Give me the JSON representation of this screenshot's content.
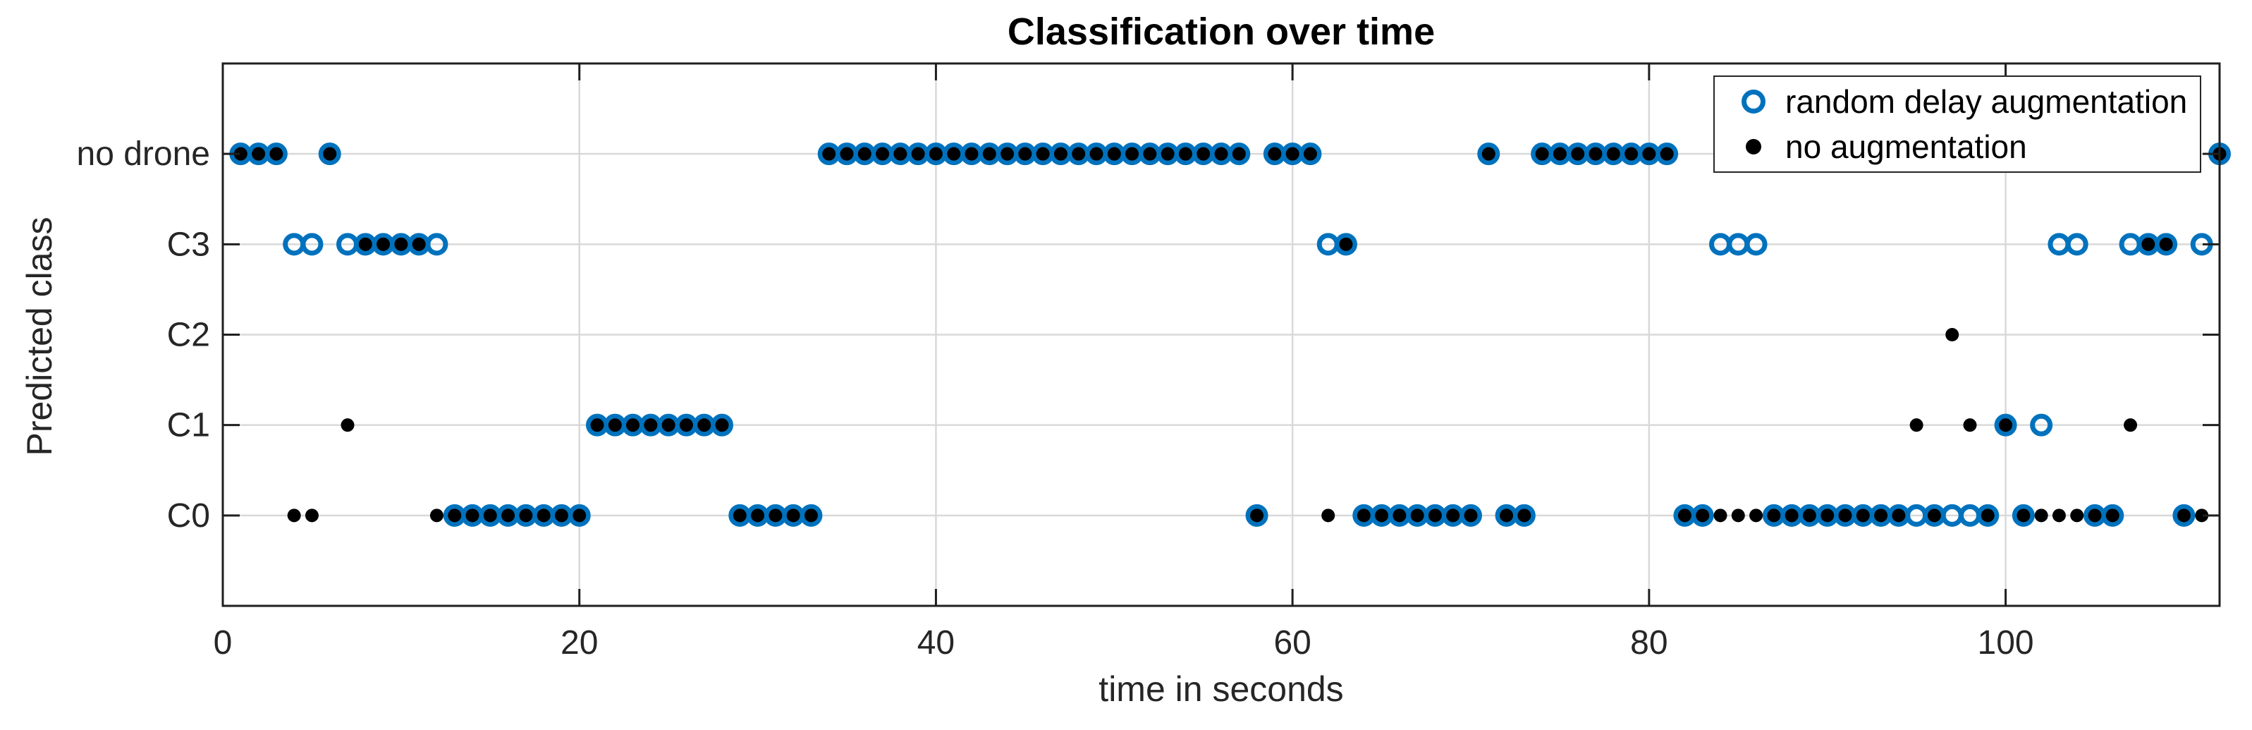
{
  "chart_data": {
    "type": "scatter",
    "title": "Classification over time",
    "xlabel": "time in seconds",
    "ylabel": "Predicted class",
    "categories_top_to_bottom": [
      "no drone",
      "C3",
      "C2",
      "C1",
      "C0"
    ],
    "x_ticks": [
      0,
      20,
      40,
      60,
      80,
      100
    ],
    "xlim": [
      0,
      112
    ],
    "grid": true,
    "legend": {
      "position": "top-right",
      "entries": [
        {
          "label": "random delay augmentation",
          "marker": "open-circle-icon",
          "color": "#0072BD"
        },
        {
          "label": "no augmentation",
          "marker": "filled-dot-icon",
          "color": "#000000"
        }
      ]
    },
    "colors": {
      "series_blue": "#0072BD",
      "series_black": "#000000",
      "grid": "#d9d9d9",
      "axis": "#1f1f1f",
      "tick_text": "#262626"
    },
    "point_format": "[time_seconds, category_index_into_categories_top_to_bottom]",
    "series": [
      {
        "name": "random delay augmentation",
        "marker": "open-circle",
        "color": "#0072BD",
        "points": [
          [
            1,
            0
          ],
          [
            2,
            0
          ],
          [
            3,
            0
          ],
          [
            4,
            1
          ],
          [
            5,
            1
          ],
          [
            6,
            0
          ],
          [
            7,
            1
          ],
          [
            8,
            1
          ],
          [
            9,
            1
          ],
          [
            10,
            1
          ],
          [
            11,
            1
          ],
          [
            12,
            1
          ],
          [
            13,
            4
          ],
          [
            14,
            4
          ],
          [
            15,
            4
          ],
          [
            16,
            4
          ],
          [
            17,
            4
          ],
          [
            18,
            4
          ],
          [
            19,
            4
          ],
          [
            20,
            4
          ],
          [
            21,
            3
          ],
          [
            22,
            3
          ],
          [
            23,
            3
          ],
          [
            24,
            3
          ],
          [
            25,
            3
          ],
          [
            26,
            3
          ],
          [
            27,
            3
          ],
          [
            28,
            3
          ],
          [
            29,
            4
          ],
          [
            30,
            4
          ],
          [
            31,
            4
          ],
          [
            32,
            4
          ],
          [
            33,
            4
          ],
          [
            34,
            0
          ],
          [
            35,
            0
          ],
          [
            36,
            0
          ],
          [
            37,
            0
          ],
          [
            38,
            0
          ],
          [
            39,
            0
          ],
          [
            40,
            0
          ],
          [
            41,
            0
          ],
          [
            42,
            0
          ],
          [
            43,
            0
          ],
          [
            44,
            0
          ],
          [
            45,
            0
          ],
          [
            46,
            0
          ],
          [
            47,
            0
          ],
          [
            48,
            0
          ],
          [
            49,
            0
          ],
          [
            50,
            0
          ],
          [
            51,
            0
          ],
          [
            52,
            0
          ],
          [
            53,
            0
          ],
          [
            54,
            0
          ],
          [
            55,
            0
          ],
          [
            56,
            0
          ],
          [
            57,
            0
          ],
          [
            58,
            4
          ],
          [
            59,
            0
          ],
          [
            60,
            0
          ],
          [
            61,
            0
          ],
          [
            62,
            1
          ],
          [
            63,
            1
          ],
          [
            64,
            4
          ],
          [
            65,
            4
          ],
          [
            66,
            4
          ],
          [
            67,
            4
          ],
          [
            68,
            4
          ],
          [
            69,
            4
          ],
          [
            70,
            4
          ],
          [
            71,
            0
          ],
          [
            72,
            4
          ],
          [
            73,
            4
          ],
          [
            74,
            0
          ],
          [
            75,
            0
          ],
          [
            76,
            0
          ],
          [
            77,
            0
          ],
          [
            78,
            0
          ],
          [
            79,
            0
          ],
          [
            80,
            0
          ],
          [
            81,
            0
          ],
          [
            82,
            4
          ],
          [
            83,
            4
          ],
          [
            84,
            1
          ],
          [
            85,
            1
          ],
          [
            86,
            1
          ],
          [
            87,
            4
          ],
          [
            88,
            4
          ],
          [
            89,
            4
          ],
          [
            90,
            4
          ],
          [
            91,
            4
          ],
          [
            92,
            4
          ],
          [
            93,
            4
          ],
          [
            94,
            4
          ],
          [
            95,
            4
          ],
          [
            96,
            4
          ],
          [
            97,
            4
          ],
          [
            98,
            4
          ],
          [
            99,
            4
          ],
          [
            100,
            3
          ],
          [
            101,
            4
          ],
          [
            102,
            3
          ],
          [
            103,
            1
          ],
          [
            104,
            1
          ],
          [
            105,
            4
          ],
          [
            106,
            4
          ],
          [
            107,
            1
          ],
          [
            108,
            1
          ],
          [
            109,
            1
          ],
          [
            110,
            4
          ],
          [
            111,
            1
          ],
          [
            112,
            0
          ]
        ]
      },
      {
        "name": "no augmentation",
        "marker": "filled-dot",
        "color": "#000000",
        "points": [
          [
            1,
            0
          ],
          [
            2,
            0
          ],
          [
            3,
            0
          ],
          [
            4,
            4
          ],
          [
            5,
            4
          ],
          [
            6,
            0
          ],
          [
            7,
            3
          ],
          [
            8,
            1
          ],
          [
            9,
            1
          ],
          [
            10,
            1
          ],
          [
            11,
            1
          ],
          [
            12,
            4
          ],
          [
            13,
            4
          ],
          [
            14,
            4
          ],
          [
            15,
            4
          ],
          [
            16,
            4
          ],
          [
            17,
            4
          ],
          [
            18,
            4
          ],
          [
            19,
            4
          ],
          [
            20,
            4
          ],
          [
            21,
            3
          ],
          [
            22,
            3
          ],
          [
            23,
            3
          ],
          [
            24,
            3
          ],
          [
            25,
            3
          ],
          [
            26,
            3
          ],
          [
            27,
            3
          ],
          [
            28,
            3
          ],
          [
            29,
            4
          ],
          [
            30,
            4
          ],
          [
            31,
            4
          ],
          [
            32,
            4
          ],
          [
            33,
            4
          ],
          [
            34,
            0
          ],
          [
            35,
            0
          ],
          [
            36,
            0
          ],
          [
            37,
            0
          ],
          [
            38,
            0
          ],
          [
            39,
            0
          ],
          [
            40,
            0
          ],
          [
            41,
            0
          ],
          [
            42,
            0
          ],
          [
            43,
            0
          ],
          [
            44,
            0
          ],
          [
            45,
            0
          ],
          [
            46,
            0
          ],
          [
            47,
            0
          ],
          [
            48,
            0
          ],
          [
            49,
            0
          ],
          [
            50,
            0
          ],
          [
            51,
            0
          ],
          [
            52,
            0
          ],
          [
            53,
            0
          ],
          [
            54,
            0
          ],
          [
            55,
            0
          ],
          [
            56,
            0
          ],
          [
            57,
            0
          ],
          [
            58,
            4
          ],
          [
            59,
            0
          ],
          [
            60,
            0
          ],
          [
            61,
            0
          ],
          [
            62,
            4
          ],
          [
            63,
            1
          ],
          [
            64,
            4
          ],
          [
            65,
            4
          ],
          [
            66,
            4
          ],
          [
            67,
            4
          ],
          [
            68,
            4
          ],
          [
            69,
            4
          ],
          [
            70,
            4
          ],
          [
            71,
            0
          ],
          [
            72,
            4
          ],
          [
            73,
            4
          ],
          [
            74,
            0
          ],
          [
            75,
            0
          ],
          [
            76,
            0
          ],
          [
            77,
            0
          ],
          [
            78,
            0
          ],
          [
            79,
            0
          ],
          [
            80,
            0
          ],
          [
            81,
            0
          ],
          [
            82,
            4
          ],
          [
            83,
            4
          ],
          [
            84,
            4
          ],
          [
            85,
            4
          ],
          [
            86,
            4
          ],
          [
            87,
            4
          ],
          [
            88,
            4
          ],
          [
            89,
            4
          ],
          [
            90,
            4
          ],
          [
            91,
            4
          ],
          [
            92,
            4
          ],
          [
            93,
            4
          ],
          [
            94,
            4
          ],
          [
            95,
            3
          ],
          [
            96,
            4
          ],
          [
            97,
            2
          ],
          [
            98,
            3
          ],
          [
            99,
            4
          ],
          [
            100,
            3
          ],
          [
            101,
            4
          ],
          [
            102,
            4
          ],
          [
            103,
            4
          ],
          [
            104,
            4
          ],
          [
            105,
            4
          ],
          [
            106,
            4
          ],
          [
            107,
            3
          ],
          [
            108,
            1
          ],
          [
            109,
            1
          ],
          [
            110,
            4
          ],
          [
            111,
            4
          ],
          [
            112,
            0
          ]
        ]
      }
    ]
  }
}
